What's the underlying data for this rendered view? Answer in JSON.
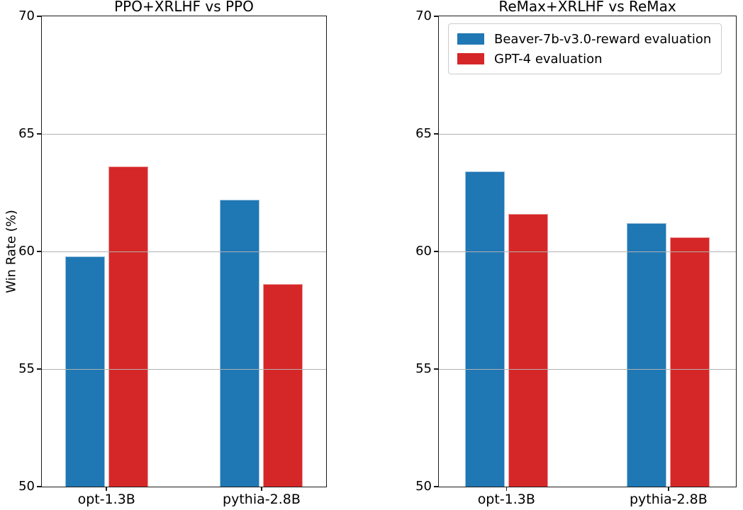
{
  "figure": {
    "ylabel": "Win Rate (%)"
  },
  "chart_data": [
    {
      "type": "bar",
      "title": "PPO+XRLHF vs PPO",
      "categories": [
        "opt-1.3B",
        "pythia-2.8B"
      ],
      "series": [
        {
          "name": "Beaver-7b-v3.0-reward evaluation",
          "color": "#1f77b4",
          "values": [
            59.8,
            62.2
          ]
        },
        {
          "name": "GPT-4 evaluation",
          "color": "#d62728",
          "values": [
            63.6,
            58.6
          ]
        }
      ],
      "xlabel": "",
      "ylabel": "Win Rate (%)",
      "ylim": [
        50,
        70
      ],
      "yticks": [
        50,
        55,
        60,
        65,
        70
      ],
      "grid": true,
      "legend": false
    },
    {
      "type": "bar",
      "title": "ReMax+XRLHF vs ReMax",
      "categories": [
        "opt-1.3B",
        "pythia-2.8B"
      ],
      "series": [
        {
          "name": "Beaver-7b-v3.0-reward evaluation",
          "color": "#1f77b4",
          "values": [
            63.4,
            61.2
          ]
        },
        {
          "name": "GPT-4 evaluation",
          "color": "#d62728",
          "values": [
            61.6,
            60.6
          ]
        }
      ],
      "xlabel": "",
      "ylabel": "",
      "ylim": [
        50,
        70
      ],
      "yticks": [
        50,
        55,
        60,
        65,
        70
      ],
      "grid": true,
      "legend": true,
      "legend_position": "upper left"
    }
  ]
}
